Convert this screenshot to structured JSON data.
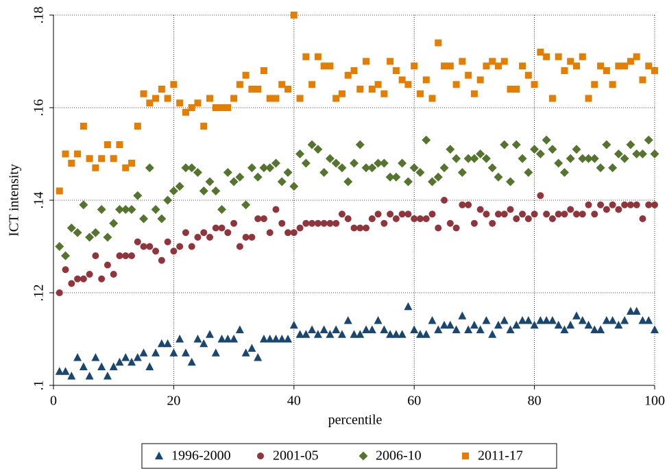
{
  "chart_data": {
    "type": "scatter",
    "xlabel": "percentile",
    "ylabel": "ICT intensity",
    "xlim": [
      0,
      100
    ],
    "xticks": [
      0,
      20,
      40,
      60,
      80,
      100
    ],
    "ylim": [
      0.1,
      0.18
    ],
    "yticks": [
      {
        "value": 0.1,
        "label": ".1"
      },
      {
        "value": 0.12,
        "label": ".12"
      },
      {
        "value": 0.14,
        "label": ".14"
      },
      {
        "value": 0.16,
        "label": ".16"
      },
      {
        "value": 0.18,
        "label": ".18"
      }
    ],
    "grid": true,
    "legend": "bottom",
    "x": [
      1,
      2,
      3,
      4,
      5,
      6,
      7,
      8,
      9,
      10,
      11,
      12,
      13,
      14,
      15,
      16,
      17,
      18,
      19,
      20,
      21,
      22,
      23,
      24,
      25,
      26,
      27,
      28,
      29,
      30,
      31,
      32,
      33,
      34,
      35,
      36,
      37,
      38,
      39,
      40,
      41,
      42,
      43,
      44,
      45,
      46,
      47,
      48,
      49,
      50,
      51,
      52,
      53,
      54,
      55,
      56,
      57,
      58,
      59,
      60,
      61,
      62,
      63,
      64,
      65,
      66,
      67,
      68,
      69,
      70,
      71,
      72,
      73,
      74,
      75,
      76,
      77,
      78,
      79,
      80,
      81,
      82,
      83,
      84,
      85,
      86,
      87,
      88,
      89,
      90,
      91,
      92,
      93,
      94,
      95,
      96,
      97,
      98,
      99,
      100
    ],
    "series": [
      {
        "name": "1996-2000",
        "color": "#1a476f",
        "marker": "triangle",
        "values": [
          0.103,
          0.103,
          0.102,
          0.106,
          0.104,
          0.102,
          0.106,
          0.104,
          0.102,
          0.104,
          0.105,
          0.106,
          0.105,
          0.106,
          0.107,
          0.104,
          0.107,
          0.109,
          0.109,
          0.107,
          0.11,
          0.107,
          0.105,
          0.11,
          0.109,
          0.111,
          0.107,
          0.11,
          0.11,
          0.11,
          0.112,
          0.107,
          0.108,
          0.106,
          0.11,
          0.11,
          0.11,
          0.11,
          0.11,
          0.113,
          0.111,
          0.111,
          0.112,
          0.111,
          0.112,
          0.111,
          0.112,
          0.111,
          0.114,
          0.111,
          0.111,
          0.112,
          0.112,
          0.114,
          0.112,
          0.111,
          0.111,
          0.111,
          0.117,
          0.112,
          0.111,
          0.111,
          0.114,
          0.112,
          0.113,
          0.113,
          0.112,
          0.115,
          0.112,
          0.113,
          0.112,
          0.114,
          0.111,
          0.113,
          0.114,
          0.112,
          0.113,
          0.114,
          0.114,
          0.113,
          0.114,
          0.114,
          0.114,
          0.113,
          0.112,
          0.113,
          0.115,
          0.114,
          0.113,
          0.112,
          0.112,
          0.114,
          0.114,
          0.113,
          0.114,
          0.116,
          0.116,
          0.114,
          0.114,
          0.112
        ]
      },
      {
        "name": "2001-05",
        "color": "#90353b",
        "marker": "circle",
        "values": [
          0.12,
          0.125,
          0.122,
          0.123,
          0.123,
          0.124,
          0.128,
          0.123,
          0.126,
          0.124,
          0.128,
          0.128,
          0.128,
          0.131,
          0.13,
          0.13,
          0.129,
          0.127,
          0.131,
          0.129,
          0.13,
          0.133,
          0.13,
          0.132,
          0.133,
          0.132,
          0.134,
          0.134,
          0.133,
          0.135,
          0.13,
          0.132,
          0.132,
          0.136,
          0.136,
          0.133,
          0.138,
          0.135,
          0.133,
          0.133,
          0.134,
          0.135,
          0.135,
          0.135,
          0.135,
          0.135,
          0.135,
          0.137,
          0.136,
          0.134,
          0.134,
          0.134,
          0.136,
          0.137,
          0.135,
          0.137,
          0.136,
          0.137,
          0.137,
          0.136,
          0.136,
          0.136,
          0.137,
          0.134,
          0.14,
          0.135,
          0.134,
          0.139,
          0.139,
          0.135,
          0.138,
          0.137,
          0.135,
          0.137,
          0.137,
          0.138,
          0.136,
          0.137,
          0.136,
          0.137,
          0.141,
          0.137,
          0.136,
          0.137,
          0.137,
          0.138,
          0.137,
          0.137,
          0.139,
          0.137,
          0.139,
          0.138,
          0.139,
          0.138,
          0.139,
          0.139,
          0.139,
          0.136,
          0.139,
          0.139
        ]
      },
      {
        "name": "2006-10",
        "color": "#55752f",
        "marker": "diamond",
        "values": [
          0.13,
          0.128,
          0.134,
          0.133,
          0.139,
          0.132,
          0.133,
          0.138,
          0.132,
          0.135,
          0.138,
          0.138,
          0.138,
          0.141,
          0.136,
          0.147,
          0.138,
          0.136,
          0.14,
          0.142,
          0.143,
          0.147,
          0.147,
          0.146,
          0.142,
          0.144,
          0.142,
          0.138,
          0.146,
          0.144,
          0.145,
          0.139,
          0.147,
          0.145,
          0.147,
          0.147,
          0.148,
          0.144,
          0.146,
          0.143,
          0.15,
          0.148,
          0.152,
          0.151,
          0.146,
          0.149,
          0.148,
          0.147,
          0.144,
          0.148,
          0.152,
          0.147,
          0.147,
          0.148,
          0.148,
          0.145,
          0.145,
          0.148,
          0.144,
          0.147,
          0.146,
          0.153,
          0.144,
          0.145,
          0.147,
          0.151,
          0.149,
          0.146,
          0.149,
          0.149,
          0.15,
          0.149,
          0.147,
          0.145,
          0.152,
          0.144,
          0.152,
          0.149,
          0.146,
          0.151,
          0.15,
          0.153,
          0.151,
          0.148,
          0.146,
          0.149,
          0.151,
          0.149,
          0.149,
          0.149,
          0.147,
          0.152,
          0.147,
          0.15,
          0.149,
          0.152,
          0.15,
          0.15,
          0.153,
          0.15
        ]
      },
      {
        "name": "2011-17",
        "color": "#e37e00",
        "marker": "square",
        "values": [
          0.142,
          0.15,
          0.148,
          0.15,
          0.156,
          0.149,
          0.147,
          0.149,
          0.152,
          0.149,
          0.152,
          0.147,
          0.148,
          0.156,
          0.163,
          0.161,
          0.162,
          0.164,
          0.162,
          0.165,
          0.161,
          0.159,
          0.16,
          0.161,
          0.156,
          0.162,
          0.16,
          0.16,
          0.16,
          0.162,
          0.165,
          0.167,
          0.164,
          0.164,
          0.168,
          0.162,
          0.162,
          0.165,
          0.164,
          0.18,
          0.162,
          0.171,
          0.165,
          0.171,
          0.169,
          0.169,
          0.162,
          0.163,
          0.167,
          0.168,
          0.164,
          0.17,
          0.164,
          0.165,
          0.163,
          0.17,
          0.168,
          0.166,
          0.165,
          0.169,
          0.163,
          0.166,
          0.162,
          0.174,
          0.169,
          0.169,
          0.165,
          0.17,
          0.167,
          0.163,
          0.166,
          0.169,
          0.17,
          0.169,
          0.17,
          0.164,
          0.164,
          0.169,
          0.167,
          0.165,
          0.172,
          0.171,
          0.162,
          0.171,
          0.168,
          0.17,
          0.169,
          0.171,
          0.162,
          0.165,
          0.169,
          0.168,
          0.165,
          0.169,
          0.169,
          0.17,
          0.171,
          0.166,
          0.169,
          0.168
        ]
      }
    ]
  }
}
